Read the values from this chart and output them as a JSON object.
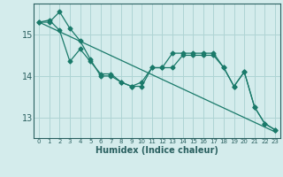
{
  "xlabel": "Humidex (Indice chaleur)",
  "bg_color": "#d4ecec",
  "grid_color": "#aed4d4",
  "line_color": "#1a7a6a",
  "series1": {
    "x": [
      0,
      1,
      2,
      3,
      4,
      5,
      6,
      7,
      8,
      9,
      10,
      11,
      12,
      13,
      14,
      15,
      16,
      17,
      18,
      19,
      20,
      21,
      22,
      23
    ],
    "y": [
      15.3,
      15.3,
      15.55,
      15.15,
      14.85,
      14.4,
      14.0,
      14.0,
      13.85,
      13.75,
      13.75,
      14.2,
      14.2,
      14.2,
      14.5,
      14.5,
      14.5,
      14.5,
      14.2,
      13.75,
      14.1,
      13.25,
      12.85,
      12.7
    ],
    "markers": true
  },
  "series2": {
    "x": [
      0,
      23
    ],
    "y": [
      15.3,
      12.65
    ],
    "markers": false
  },
  "series3": {
    "x": [
      0,
      1,
      2,
      3,
      4,
      5,
      6,
      7,
      8,
      9,
      10,
      11,
      12,
      13,
      14,
      15,
      16,
      17,
      18,
      19,
      20,
      21,
      22,
      23
    ],
    "y": [
      15.3,
      15.35,
      15.1,
      14.35,
      14.65,
      14.35,
      14.05,
      14.05,
      13.85,
      13.75,
      13.85,
      14.2,
      14.2,
      14.55,
      14.55,
      14.55,
      14.55,
      14.55,
      14.2,
      13.75,
      14.1,
      13.25,
      12.85,
      12.7
    ],
    "markers": true
  },
  "ylim": [
    12.5,
    15.75
  ],
  "yticks": [
    13,
    14,
    15
  ],
  "xlim": [
    -0.5,
    23.5
  ],
  "xticks": [
    0,
    1,
    2,
    3,
    4,
    5,
    6,
    7,
    8,
    9,
    10,
    11,
    12,
    13,
    14,
    15,
    16,
    17,
    18,
    19,
    20,
    21,
    22,
    23
  ]
}
